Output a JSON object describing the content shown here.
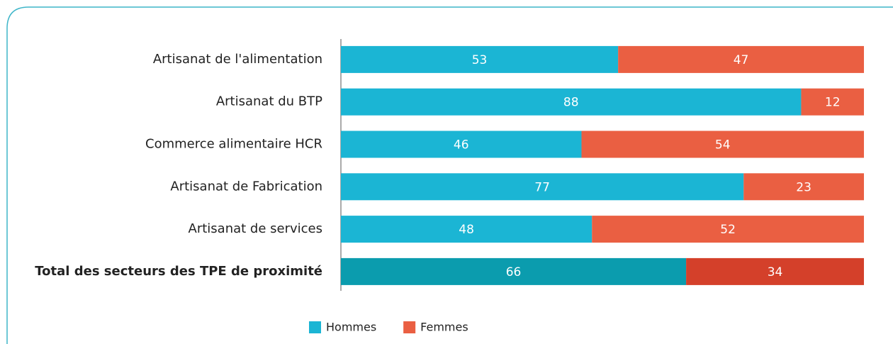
{
  "chart_data": {
    "type": "stacked_bar_horizontal",
    "categories": [
      "Artisanat de l'alimentation",
      "Artisanat du BTP",
      "Commerce alimentaire HCR",
      "Artisanat de Fabrication",
      "Artisanat de services",
      "Total des secteurs des TPE de proximité"
    ],
    "series": [
      {
        "name": "Hommes",
        "color": "#1bb5d4",
        "colors": [
          "#1bb5d4",
          "#1bb5d4",
          "#1bb5d4",
          "#1bb5d4",
          "#1bb5d4",
          "#0b9cae"
        ],
        "values": [
          53,
          88,
          46,
          77,
          48,
          66
        ]
      },
      {
        "name": "Femmes",
        "color": "#ea5f42",
        "colors": [
          "#ea5f42",
          "#ea5f42",
          "#ea5f42",
          "#ea5f42",
          "#ea5f42",
          "#d4402a"
        ],
        "values": [
          47,
          12,
          54,
          23,
          52,
          34
        ]
      }
    ],
    "xlim": [
      0,
      100
    ],
    "bold_category": 5,
    "legend": "bottom"
  }
}
